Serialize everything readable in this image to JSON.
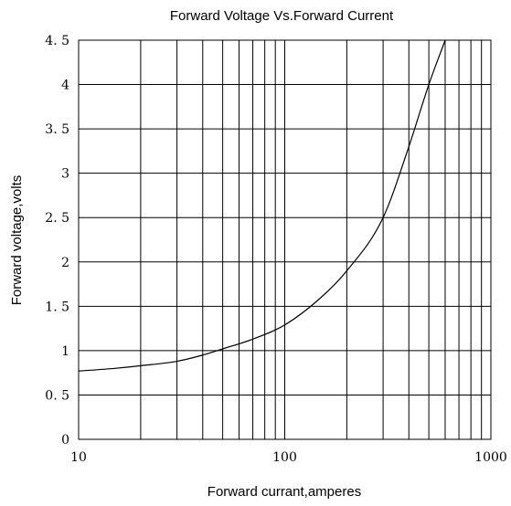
{
  "chart_data": {
    "type": "line",
    "title": "Forward  Voltage Vs.Forward Current",
    "xlabel": "Forward  currant,amperes",
    "ylabel": "Forward  voltage,volts",
    "x_scale": "log",
    "xlim": [
      10,
      1000
    ],
    "ylim": [
      0,
      4.5
    ],
    "x_ticks": [
      10,
      100,
      1000
    ],
    "x_tick_labels": [
      "10",
      "100",
      "1000"
    ],
    "y_ticks": [
      0,
      0.5,
      1,
      1.5,
      2,
      2.5,
      3,
      3.5,
      4,
      4.5
    ],
    "y_tick_labels": [
      "0",
      "0. 5",
      "1",
      "1. 5",
      "2",
      "2. 5",
      "3",
      "3. 5",
      "4",
      "4. 5"
    ],
    "grid": true,
    "series": [
      {
        "x": [
          10,
          15,
          20,
          30,
          40,
          50,
          70,
          100,
          150,
          200,
          300,
          400,
          500,
          600
        ],
        "y": [
          0.77,
          0.8,
          0.83,
          0.88,
          0.95,
          1.02,
          1.13,
          1.29,
          1.6,
          1.9,
          2.5,
          3.3,
          4.0,
          4.5
        ]
      }
    ]
  }
}
